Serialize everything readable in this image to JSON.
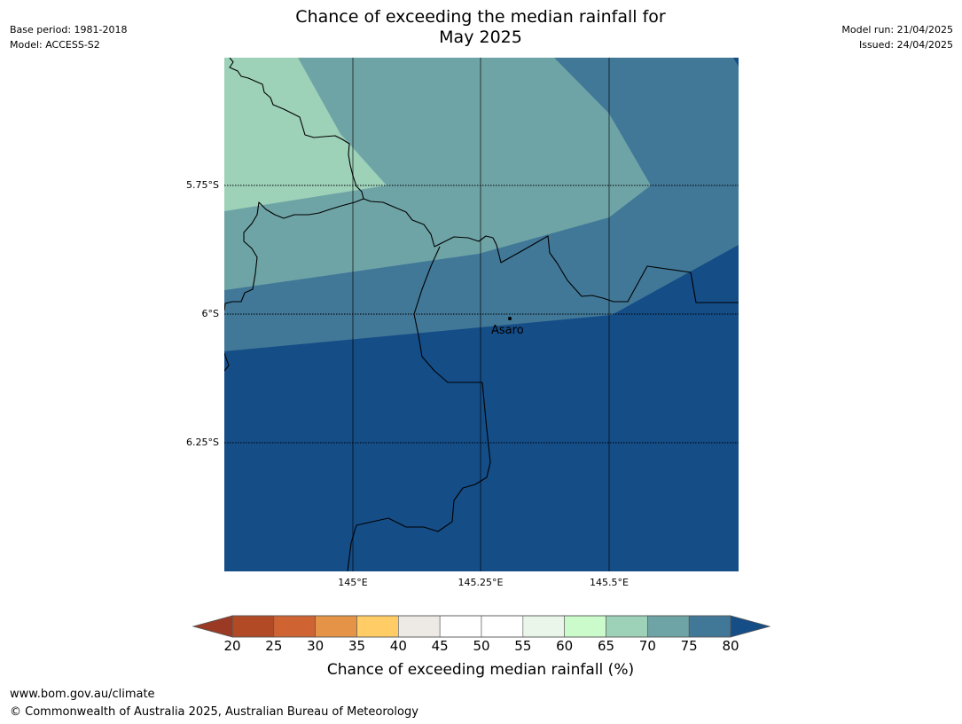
{
  "title": {
    "line1": "Chance of exceeding the median rainfall for",
    "line2": "May 2025"
  },
  "meta_left": {
    "base_period": "Base period: 1981-2018",
    "model": "Model: ACCESS-S2"
  },
  "meta_right": {
    "model_run": "Model run: 21/04/2025",
    "issued": "Issued: 24/04/2025"
  },
  "map": {
    "latitude_labels": [
      "5.75°S",
      "6°S",
      "6.25°S"
    ],
    "longitude_labels": [
      "145°E",
      "145.25°E",
      "145.5°E"
    ],
    "place": {
      "name": "Asaro",
      "marker_icon": "dot-marker-icon"
    },
    "graticule": {
      "parallels": "dotted",
      "meridians": "solid"
    },
    "colors": {
      "pct_65_70": "#9dd1b8",
      "pct_70_75": "#6fa4a7",
      "pct_75_80": "#417898",
      "pct_over_80": "#154d87",
      "border": "#000000"
    }
  },
  "colorbar": {
    "label": "Chance of exceeding median rainfall (%)",
    "ticks": [
      "20",
      "25",
      "30",
      "35",
      "40",
      "45",
      "50",
      "55",
      "60",
      "65",
      "70",
      "75",
      "80"
    ],
    "bins": [
      {
        "range": "20-25",
        "color": "#b14a25"
      },
      {
        "range": "25-30",
        "color": "#cf6432"
      },
      {
        "range": "30-35",
        "color": "#e59447"
      },
      {
        "range": "35-40",
        "color": "#ffcc66"
      },
      {
        "range": "40-45",
        "color": "#ede9e4"
      },
      {
        "range": "45-50",
        "color": "#ffffff"
      },
      {
        "range": "50-55",
        "color": "#ffffff"
      },
      {
        "range": "55-60",
        "color": "#e9f6e9"
      },
      {
        "range": "60-65",
        "color": "#cbfbcb"
      },
      {
        "range": "65-70",
        "color": "#9dd1b8"
      },
      {
        "range": "70-75",
        "color": "#6fa4a7"
      },
      {
        "range": "75-80",
        "color": "#417898"
      }
    ],
    "under_color": "#9b3a24",
    "over_color": "#154d87"
  },
  "footer": {
    "url": "www.bom.gov.au/climate",
    "copyright": "© Commonwealth of Australia 2025, Australian Bureau of Meteorology"
  }
}
